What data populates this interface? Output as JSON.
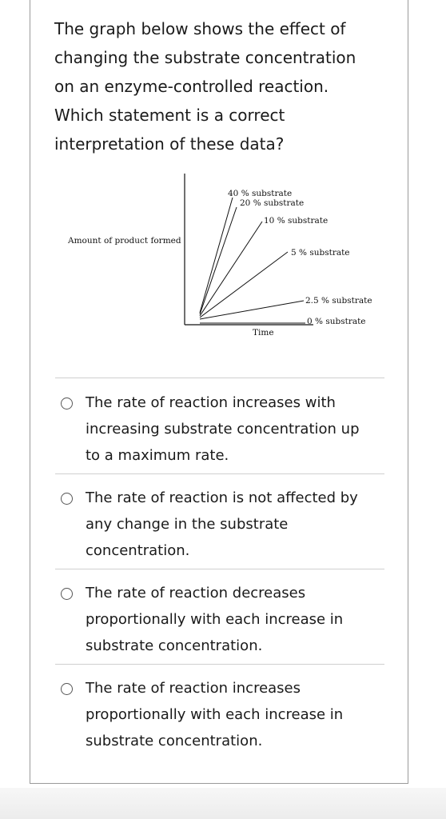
{
  "question": {
    "lines": [
      "The graph below shows the effect of",
      "changing the substrate concentration",
      "on an enzyme-controlled reaction.",
      "Which statement is a  correct",
      "interpretation of these data?"
    ]
  },
  "chart_data": {
    "type": "line",
    "title": "",
    "xlabel": "Time",
    "ylabel": "Amount of product formed",
    "series": [
      {
        "name": "40 % substrate"
      },
      {
        "name": "20 % substrate"
      },
      {
        "name": "10 % substrate"
      },
      {
        "name": "5 % substrate"
      },
      {
        "name": "2.5 % substrate"
      },
      {
        "name": "0 % substrate"
      }
    ],
    "grid": false,
    "legend": "labels at line ends"
  },
  "options": [
    {
      "lines": [
        "The rate of reaction increases with",
        "increasing substrate concentration up",
        "to a maximum rate."
      ]
    },
    {
      "lines": [
        "The rate of reaction is not affected by",
        "any change in the substrate",
        "concentration."
      ]
    },
    {
      "lines": [
        "The rate of reaction decreases",
        "proportionally with each increase in",
        "substrate concentration."
      ]
    },
    {
      "lines": [
        "The rate of reaction increases",
        "proportionally with each increase in",
        "substrate concentration."
      ]
    }
  ]
}
